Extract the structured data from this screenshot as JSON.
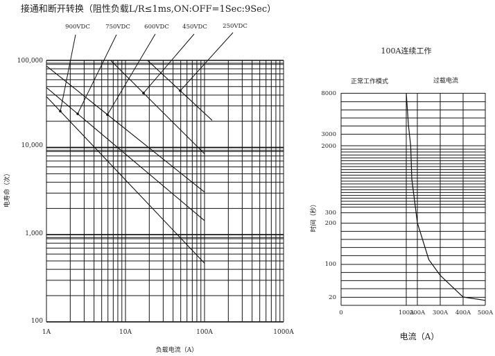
{
  "chart_data": [
    {
      "type": "line",
      "title": "接通和断开转换（阻性负载L/R≤1ms,ON:OFF=1Sec:9Sec）",
      "xlabel": "负载电流（A）",
      "ylabel": "电寿命（次）",
      "x_scale": "log",
      "y_scale": "log",
      "xlim": [
        1,
        1000
      ],
      "ylim": [
        100,
        100000
      ],
      "x_ticks": [
        "1A",
        "10A",
        "100A",
        "1000A"
      ],
      "y_ticks": [
        "100,000",
        "10,000",
        "1,000",
        "100"
      ],
      "grid": true,
      "series": [
        {
          "name": "900VDC",
          "x": [
            1,
            100
          ],
          "y": [
            38400,
            470
          ]
        },
        {
          "name": "750VDC",
          "x": [
            1,
            100
          ],
          "y": [
            48800,
            1450
          ]
        },
        {
          "name": "600VDC",
          "x": [
            1,
            100
          ],
          "y": [
            86300,
            3080
          ]
        },
        {
          "name": "450VDC",
          "x": [
            6.5,
            100
          ],
          "y": [
            100000,
            8470
          ]
        },
        {
          "name": "250VDC",
          "x": [
            19,
            125
          ],
          "y": [
            100000,
            20500
          ]
        }
      ]
    },
    {
      "type": "line",
      "title": "100A连续工作",
      "xlabel": "电流（A）",
      "ylabel": "时间（秒）",
      "region_labels": [
        "正常工作模式",
        "过载电流"
      ],
      "x_ticks": [
        "0",
        "100A",
        "200A",
        "300A",
        "400A",
        "500A"
      ],
      "y_ticks": [
        "8000",
        "3000",
        "2000",
        "300",
        "200",
        "100",
        "20"
      ],
      "grid": true,
      "series": [
        {
          "x": [
            100,
            120,
            140,
            150,
            200,
            250,
            300,
            400,
            500
          ],
          "y": [
            8000,
            4000,
            2000,
            1150,
            200,
            110,
            72,
            20,
            12
          ]
        }
      ]
    }
  ]
}
